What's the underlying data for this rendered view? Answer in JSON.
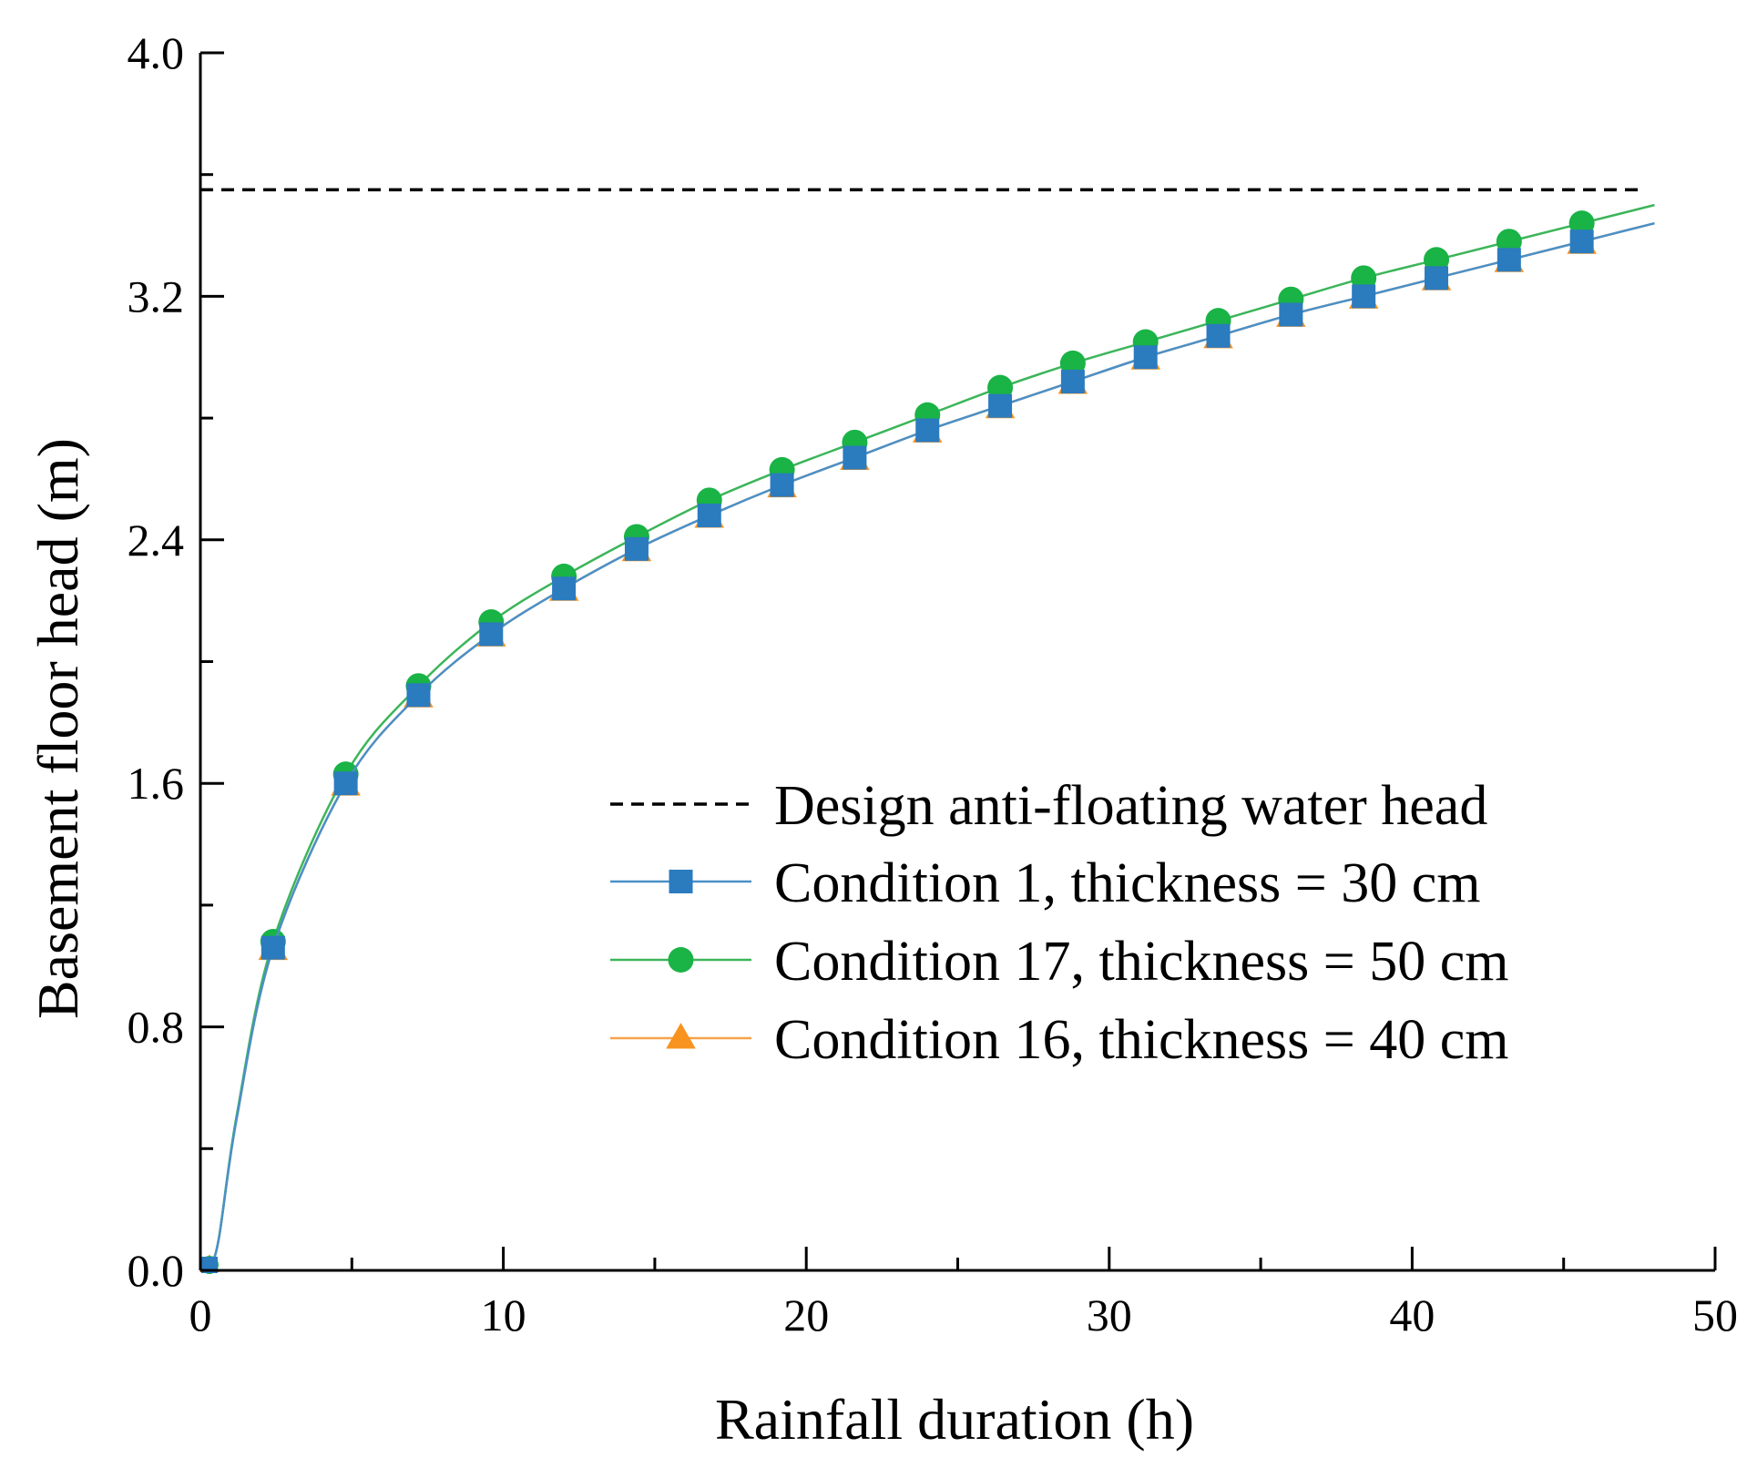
{
  "chart_data": {
    "type": "line",
    "xlabel": "Rainfall duration (h)",
    "ylabel": "Basement floor head (m)",
    "xlim": [
      0,
      50
    ],
    "ylim": [
      0,
      4
    ],
    "x_ticks": [
      0,
      10,
      20,
      30,
      40,
      50
    ],
    "x_tick_labels": [
      "0",
      "10",
      "20",
      "30",
      "40",
      "50"
    ],
    "y_ticks": [
      0,
      0.8,
      1.6,
      2.4,
      3.2,
      4.0
    ],
    "y_tick_labels": [
      "0.0",
      "0.8",
      "1.6",
      "2.4",
      "3.2",
      "4.0"
    ],
    "grid": false,
    "legend_position": "lower-right",
    "reference_line": {
      "name": "Design anti-floating water head",
      "y": 3.55,
      "x_range": [
        0,
        47.5
      ],
      "style": "dashed",
      "color": "#000000"
    },
    "series": [
      {
        "name": "Condition 1, thickness = 30 cm",
        "color": "#4a90c8",
        "marker_color": "#2b7bbf",
        "marker": "square",
        "x": [
          0,
          0.3,
          0.6,
          1.2,
          2.4,
          4.8,
          7.2,
          9.6,
          12.0,
          14.4,
          16.8,
          19.2,
          21.6,
          24.0,
          26.4,
          28.8,
          31.2,
          33.6,
          36.0,
          38.4,
          40.8,
          43.2,
          45.6,
          48.0
        ],
        "y": [
          0.0,
          0.02,
          0.1,
          0.5,
          1.06,
          1.6,
          1.89,
          2.09,
          2.24,
          2.37,
          2.48,
          2.58,
          2.67,
          2.76,
          2.84,
          2.92,
          3.0,
          3.07,
          3.14,
          3.2,
          3.26,
          3.32,
          3.38,
          3.44
        ],
        "marker_x": [
          2.4,
          4.8,
          7.2,
          9.6,
          12.0,
          14.4,
          16.8,
          19.2,
          21.6,
          24.0,
          26.4,
          28.8,
          31.2,
          33.6,
          36.0,
          38.4,
          40.8,
          43.2,
          45.6
        ]
      },
      {
        "name": "Condition 17, thickness = 50 cm",
        "color": "#3cb55a",
        "marker_color": "#19b346",
        "marker": "circle",
        "x": [
          0,
          0.3,
          0.6,
          1.2,
          2.4,
          4.8,
          7.2,
          9.6,
          12.0,
          14.4,
          16.8,
          19.2,
          21.6,
          24.0,
          26.4,
          28.8,
          31.2,
          33.6,
          36.0,
          38.4,
          40.8,
          43.2,
          45.6,
          48.0
        ],
        "y": [
          0.0,
          0.02,
          0.1,
          0.51,
          1.08,
          1.63,
          1.92,
          2.13,
          2.28,
          2.41,
          2.53,
          2.63,
          2.72,
          2.81,
          2.9,
          2.98,
          3.05,
          3.12,
          3.19,
          3.26,
          3.32,
          3.38,
          3.44,
          3.5
        ],
        "marker_x": [
          2.4,
          4.8,
          7.2,
          9.6,
          12.0,
          14.4,
          16.8,
          19.2,
          21.6,
          24.0,
          26.4,
          28.8,
          31.2,
          33.6,
          36.0,
          38.4,
          40.8,
          43.2,
          45.6
        ]
      },
      {
        "name": "Condition 16, thickness = 40 cm",
        "color": "#f6a34a",
        "marker_color": "#f7931e",
        "marker": "triangle",
        "x": [
          0,
          0.3,
          0.6,
          1.2,
          2.4,
          4.8,
          7.2,
          9.6,
          12.0,
          14.4,
          16.8,
          19.2,
          21.6,
          24.0,
          26.4,
          28.8,
          31.2,
          33.6,
          36.0,
          38.4,
          40.8,
          43.2,
          45.6,
          48.0
        ],
        "y": [
          0.0,
          0.02,
          0.1,
          0.5,
          1.06,
          1.6,
          1.89,
          2.09,
          2.24,
          2.37,
          2.48,
          2.58,
          2.67,
          2.76,
          2.84,
          2.92,
          3.0,
          3.07,
          3.14,
          3.2,
          3.26,
          3.32,
          3.38,
          3.44
        ],
        "marker_x": [
          2.4,
          4.8,
          7.2,
          9.6,
          12.0,
          14.4,
          16.8,
          19.2,
          21.6,
          24.0,
          26.4,
          28.8,
          31.2,
          33.6,
          36.0,
          38.4,
          40.8,
          43.2,
          45.6
        ]
      }
    ]
  }
}
